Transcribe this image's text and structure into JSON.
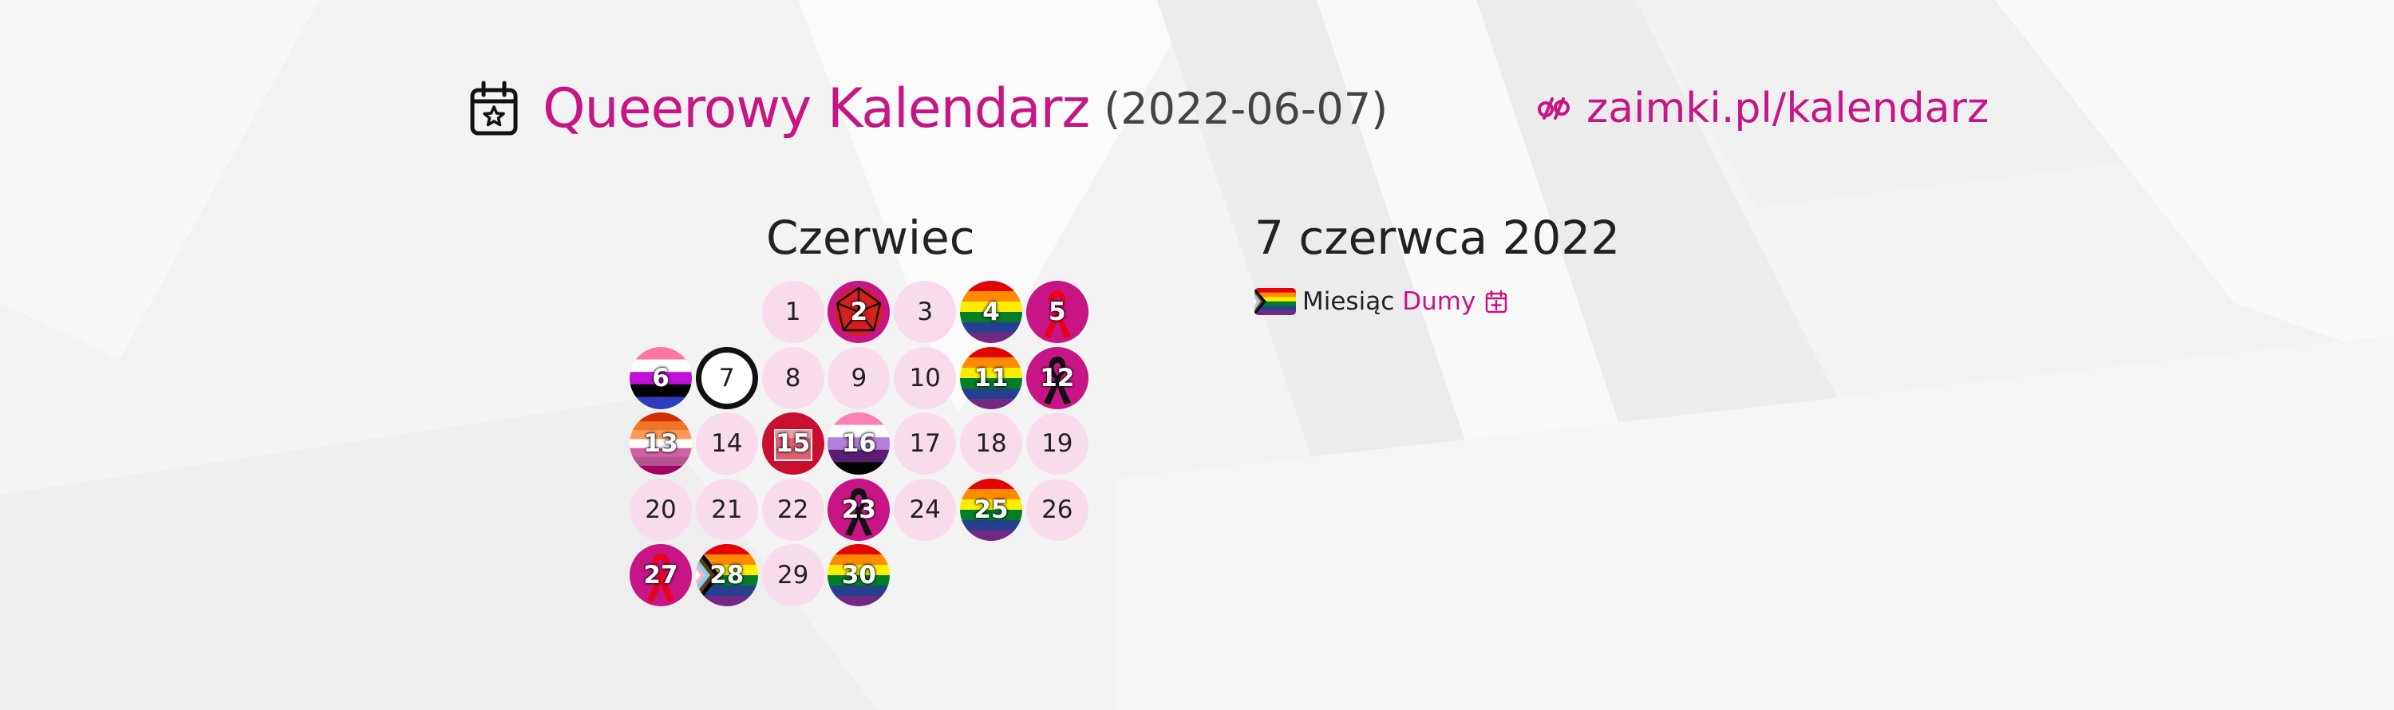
{
  "header": {
    "title": "Queerowy Kalendarz",
    "date": "(2022-06-07)",
    "icon": "calendar-star-icon",
    "site_icon": "pronouns-logo-icon",
    "site": "zaimki.pl/kalendarz"
  },
  "calendar": {
    "month": "Czerwiec",
    "today": 7,
    "weeks": [
      [
        null,
        null,
        1,
        2,
        3,
        4,
        5
      ],
      [
        6,
        7,
        8,
        9,
        10,
        11,
        12
      ],
      [
        13,
        14,
        15,
        16,
        17,
        18,
        19
      ],
      [
        20,
        21,
        22,
        23,
        24,
        25,
        26
      ],
      [
        27,
        28,
        29,
        30
      ]
    ],
    "event_days": {
      "2": "umbrella",
      "4": "rainbow",
      "5": "red-ribbon",
      "6": "genderfluid",
      "11": "rainbow",
      "12": "black-ribbon",
      "13": "lesbian",
      "15": "red-rect",
      "16": "genderqueer",
      "23": "black-ribbon",
      "25": "rainbow",
      "27": "red-ribbon",
      "28": "progress",
      "30": "rainbow"
    }
  },
  "selected": {
    "date": "7 czerwca 2022",
    "event_word": "Miesiąc",
    "event_link": "Dumy",
    "flag_icon": "progress-pride-flag-icon",
    "add_icon": "calendar-plus-icon"
  },
  "colors": {
    "accent": "#c71585",
    "day_bg": "#f9dcec",
    "ribbon_bg": "#c71585"
  }
}
